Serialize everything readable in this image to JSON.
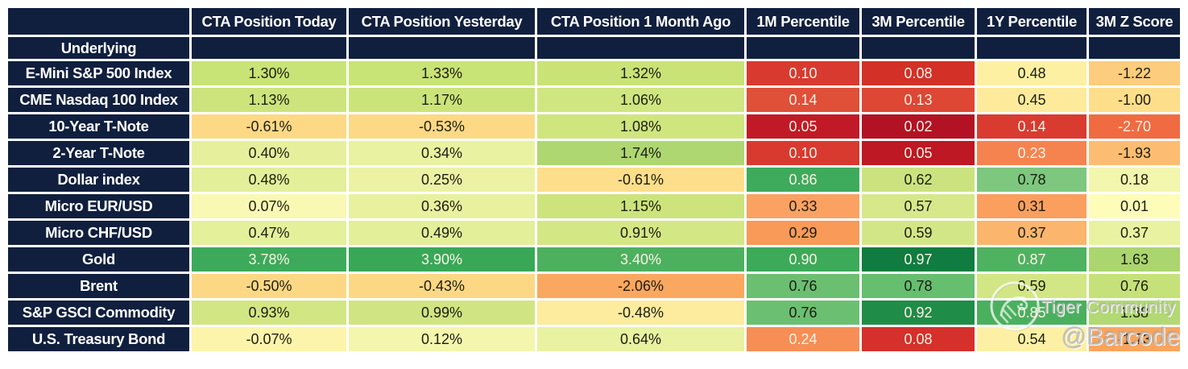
{
  "chart_data": {
    "type": "table",
    "row_header_label": "Underlying",
    "columns": [
      "CTA Position Today",
      "CTA Position Yesterday",
      "CTA Position 1 Month Ago",
      "1M Percentile",
      "3M Percentile",
      "1Y Percentile",
      "3M Z Score"
    ],
    "rows": [
      {
        "label": "E-Mini S&P 500 Index",
        "values": [
          "1.30%",
          "1.33%",
          "1.32%",
          "0.10",
          "0.08",
          "0.48",
          "-1.22"
        ],
        "cell_bg": [
          "#c8e376",
          "#c8e376",
          "#c9e377",
          "#d83a30",
          "#d33027",
          "#fdf0a2",
          "#fccd7c"
        ],
        "cell_fg": [
          "dark",
          "dark",
          "dark",
          "light",
          "light",
          "dark",
          "dark"
        ]
      },
      {
        "label": "CME Nasdaq 100 Index",
        "values": [
          "1.13%",
          "1.17%",
          "1.06%",
          "0.14",
          "0.13",
          "0.45",
          "-1.00"
        ],
        "cell_bg": [
          "#cce47b",
          "#cbe479",
          "#d0e680",
          "#e04f37",
          "#dd4734",
          "#fdeb9b",
          "#fdde8b"
        ],
        "cell_fg": [
          "dark",
          "dark",
          "dark",
          "light",
          "light",
          "dark",
          "dark"
        ]
      },
      {
        "label": "10-Year T-Note",
        "values": [
          "-0.61%",
          "-0.53%",
          "1.08%",
          "0.05",
          "0.02",
          "0.14",
          "-2.70"
        ],
        "cell_bg": [
          "#fdd985",
          "#fdd985",
          "#cfe57e",
          "#c11a26",
          "#b21224",
          "#d93b31",
          "#f06b42"
        ],
        "cell_fg": [
          "dark",
          "dark",
          "dark",
          "light",
          "light",
          "light",
          "light"
        ]
      },
      {
        "label": "2-Year T-Note",
        "values": [
          "0.40%",
          "0.34%",
          "1.74%",
          "0.10",
          "0.05",
          "0.23",
          "-1.93"
        ],
        "cell_bg": [
          "#e6f09c",
          "#e9f2a0",
          "#aed771",
          "#d83a30",
          "#bd1823",
          "#f58350",
          "#fcbd72"
        ],
        "cell_fg": [
          "dark",
          "dark",
          "dark",
          "light",
          "light",
          "light",
          "dark"
        ]
      },
      {
        "label": "Dollar index",
        "values": [
          "0.48%",
          "0.25%",
          "-0.61%",
          "0.86",
          "0.62",
          "0.78",
          "0.18"
        ],
        "cell_bg": [
          "#e3ef99",
          "#ebf2a3",
          "#fdde8a",
          "#3dab5b",
          "#cbe37e",
          "#7dc77e",
          "#f3f6ad"
        ],
        "cell_fg": [
          "dark",
          "dark",
          "dark",
          "light",
          "dark",
          "dark",
          "dark"
        ]
      },
      {
        "label": "Micro EUR/USD",
        "values": [
          "0.07%",
          "0.36%",
          "1.15%",
          "0.33",
          "0.57",
          "0.31",
          "0.01"
        ],
        "cell_bg": [
          "#f9f9b3",
          "#e8f19e",
          "#cce47b",
          "#fba263",
          "#d7e88b",
          "#fa9f5e",
          "#fefcb9"
        ],
        "cell_fg": [
          "dark",
          "dark",
          "dark",
          "dark",
          "dark",
          "dark",
          "dark"
        ]
      },
      {
        "label": "Micro CHF/USD",
        "values": [
          "0.47%",
          "0.49%",
          "0.91%",
          "0.29",
          "0.59",
          "0.37",
          "0.37"
        ],
        "cell_bg": [
          "#e4f09a",
          "#e3ef99",
          "#d4e785",
          "#f99a58",
          "#d3e687",
          "#fcb56c",
          "#e8f2a1"
        ],
        "cell_fg": [
          "dark",
          "dark",
          "dark",
          "dark",
          "dark",
          "dark",
          "dark"
        ]
      },
      {
        "label": "Gold",
        "values": [
          "3.78%",
          "3.90%",
          "3.40%",
          "0.90",
          "0.97",
          "0.87",
          "1.63"
        ],
        "cell_bg": [
          "#3caa5a",
          "#38a857",
          "#4db05f",
          "#3caa58",
          "#107c3f",
          "#4fb261",
          "#abd56f"
        ],
        "cell_fg": [
          "light",
          "light",
          "light",
          "light",
          "light",
          "light",
          "dark"
        ]
      },
      {
        "label": "Brent",
        "values": [
          "-0.50%",
          "-0.43%",
          "-2.06%",
          "0.76",
          "0.78",
          "0.59",
          "0.76"
        ],
        "cell_bg": [
          "#fdd884",
          "#fdd884",
          "#faa75f",
          "#6bbf71",
          "#66be6f",
          "#d2e685",
          "#c5e179"
        ],
        "cell_fg": [
          "dark",
          "dark",
          "dark",
          "dark",
          "dark",
          "dark",
          "dark"
        ]
      },
      {
        "label": "S&P GSCI Commodity",
        "values": [
          "0.93%",
          "0.99%",
          "-0.48%",
          "0.76",
          "0.92",
          "0.85",
          "1.38"
        ],
        "cell_bg": [
          "#d2e684",
          "#d0e582",
          "#fdeb9e",
          "#6bbf71",
          "#1f8c47",
          "#4bb05e",
          "#b2d973"
        ],
        "cell_fg": [
          "dark",
          "dark",
          "dark",
          "dark",
          "light",
          "light",
          "dark"
        ]
      },
      {
        "label": "U.S. Treasury Bond",
        "values": [
          "-0.07%",
          "0.12%",
          "0.64%",
          "0.24",
          "0.08",
          "0.54",
          "-1.73"
        ],
        "cell_bg": [
          "#fdf4ab",
          "#f4f6ad",
          "#e8f2a1",
          "#f78e55",
          "#d5302b",
          "#fdf0a4",
          "#f9a55e"
        ],
        "cell_fg": [
          "dark",
          "dark",
          "dark",
          "light",
          "light",
          "dark",
          "dark"
        ]
      }
    ]
  },
  "colors": {
    "header_bg": "#101f3e",
    "header_fg": "#ffffff",
    "dark_text": "#1c1c12",
    "light_text": "#fdf2e7"
  },
  "watermark": {
    "community": "Tiger Community",
    "handle": "@Barcode"
  }
}
